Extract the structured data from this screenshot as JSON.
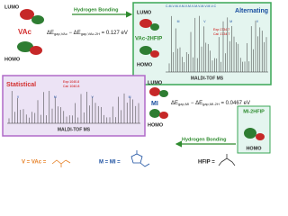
{
  "vac_panel": {
    "lumo": "LUMO",
    "homo": "HOMO",
    "name": "VAc"
  },
  "top_arrow": "Hydrogen Bonding",
  "eq_vac": [
    "ΔE",
    "gap,VAc",
    " − ΔE",
    "gap,VAc-2H",
    " = 0.127 eV"
  ],
  "alt_box": {
    "title": "Alternating",
    "sequence": "C-M-V-M-V-M-V-M-V-M-V-M-V-M-V-C",
    "exp": "Exp:1734.7",
    "cal": "Cal: 1734.7",
    "complex": "VAc-2HFIP",
    "lumo": "LUMO",
    "homo": "HOMO",
    "ms": "MALDI-TOF MS",
    "peaks": [
      "M",
      "V",
      "M",
      "V"
    ]
  },
  "stat_box": {
    "title": "Statistical",
    "exp": "Exp:1040.8",
    "cal": "Cal: 1040.8",
    "ms": "MALDI-TOF MS",
    "peaks": [
      "V",
      "M",
      "V",
      "M"
    ]
  },
  "mi_panel": {
    "lumo": "LUMO",
    "homo": "HOMO",
    "name": "MI"
  },
  "eq_mi": [
    "ΔE",
    "gap,MI",
    " − ΔE",
    "gap,MI-2H",
    " = 0.0467 eV"
  ],
  "mi_complex": {
    "name": "MI-2HFIP",
    "homo": "HOMO"
  },
  "bottom_arrow": "Hydrogen Bonding",
  "legend": {
    "v": "V = VAc =",
    "m": "M = MI =",
    "hfip": "HFIP ="
  }
}
